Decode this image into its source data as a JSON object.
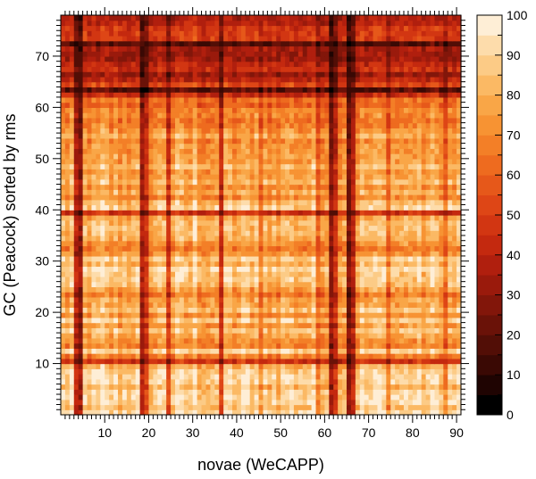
{
  "chart_data": {
    "type": "heatmap",
    "title": "",
    "xlabel": "novae (WeCAPP)",
    "ylabel": "GC (Peacock) sorted by rms",
    "xlim": [
      0,
      91
    ],
    "ylim": [
      0,
      78
    ],
    "xticks": [
      10,
      20,
      30,
      40,
      50,
      60,
      70,
      80,
      90
    ],
    "xtick_labels": [
      "10",
      "20",
      "30",
      "40",
      "50",
      "60",
      "70",
      "80",
      "90"
    ],
    "yticks": [
      10,
      20,
      30,
      40,
      50,
      60,
      70
    ],
    "ytick_labels": [
      "10",
      "20",
      "30",
      "40",
      "50",
      "60",
      "70"
    ],
    "colorbar": {
      "min": 0,
      "max": 100,
      "ticks": [
        0,
        10,
        20,
        30,
        40,
        50,
        60,
        70,
        80,
        90,
        100
      ],
      "tick_labels": [
        "0",
        "10",
        "20",
        "30",
        "40",
        "50",
        "60",
        "70",
        "80",
        "90",
        "100"
      ],
      "levels": 20,
      "colors": [
        "#000000",
        "#1f0402",
        "#3a0904",
        "#520e06",
        "#6a1208",
        "#82160a",
        "#9a1a0c",
        "#b01f0e",
        "#c4290f",
        "#d23612",
        "#de4616",
        "#e6581a",
        "#ee6b1f",
        "#f37f27",
        "#f79333",
        "#f9a647",
        "#fbb964",
        "#fccb86",
        "#fddcab",
        "#feeed6"
      ]
    },
    "notes": "Filled contour map of match percentage between novae and globular clusters; values mostly 40-95, darker at top rows (y>62) and at dark vertical bands near x=4, 18, 24, 36, 61, 65."
  }
}
